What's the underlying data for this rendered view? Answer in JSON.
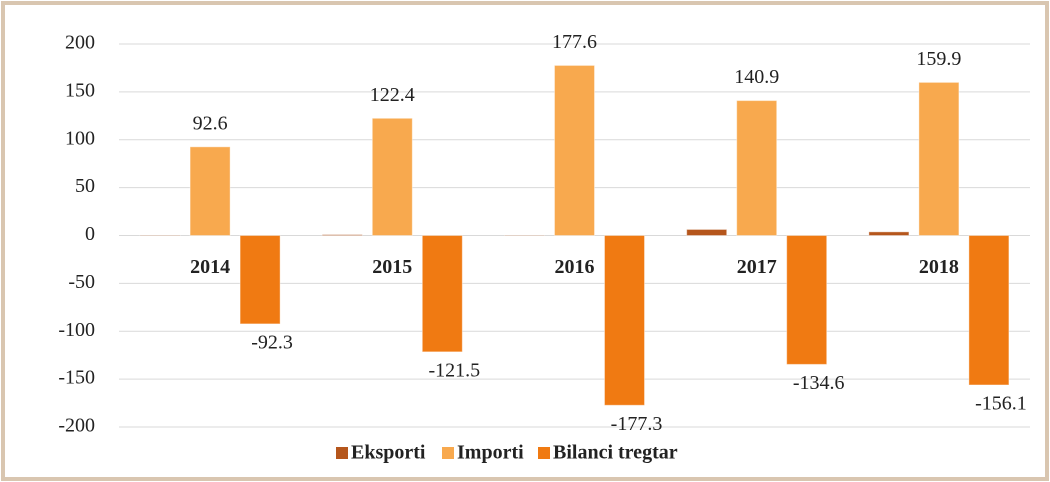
{
  "chart_data": {
    "type": "bar",
    "categories": [
      "2014",
      "2015",
      "2016",
      "2017",
      "2018"
    ],
    "series": [
      {
        "name": "Eksporti",
        "color": "#b5561c",
        "values": [
          0.3,
          0.9,
          0.3,
          6.3,
          3.8
        ]
      },
      {
        "name": "Importi",
        "color": "#f8a94e",
        "values": [
          92.6,
          122.4,
          177.6,
          140.9,
          159.9
        ]
      },
      {
        "name": "Bilanci tregtar",
        "color": "#f07a12",
        "values": [
          -92.3,
          -121.5,
          -177.3,
          -134.6,
          -156.1
        ]
      }
    ],
    "show_value_labels": [
      "Importi",
      "Bilanci tregtar"
    ],
    "ylim": [
      -200,
      200
    ],
    "yticks": [
      -200,
      -150,
      -100,
      -50,
      0,
      50,
      100,
      150,
      200
    ],
    "grid": true,
    "legend": "bottom"
  }
}
